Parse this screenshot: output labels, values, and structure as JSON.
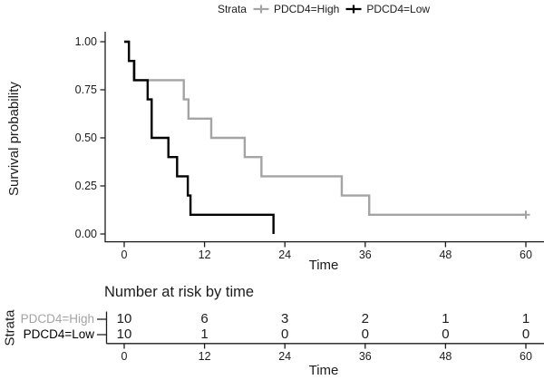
{
  "legend": {
    "title": "Strata",
    "items": [
      {
        "label": "PDCD4=High",
        "color": "#a4a4a4"
      },
      {
        "label": "PDCD4=Low",
        "color": "#000000"
      }
    ]
  },
  "axes": {
    "x_label": "Time",
    "y_label": "Survival probability",
    "x_ticks": [
      0,
      12,
      24,
      36,
      48,
      60
    ],
    "y_ticks": [
      "1.00",
      "0.75",
      "0.50",
      "0.25",
      "0.00"
    ],
    "y_tick_values": [
      1.0,
      0.75,
      0.5,
      0.25,
      0.0
    ]
  },
  "chart_data": {
    "type": "line",
    "subtype": "kaplan-meier-step",
    "title": "",
    "xlabel": "Time",
    "ylabel": "Survival probability",
    "xlim": [
      0,
      60
    ],
    "ylim": [
      0.0,
      1.0
    ],
    "grid": false,
    "legend_position": "top",
    "series": [
      {
        "name": "PDCD4=High",
        "color": "#a4a4a4",
        "steps": [
          [
            0,
            1.0
          ],
          [
            0.7,
            0.9
          ],
          [
            1.4,
            0.8
          ],
          [
            8.9,
            0.7
          ],
          [
            9.6,
            0.6
          ],
          [
            13,
            0.5
          ],
          [
            18,
            0.4
          ],
          [
            20.5,
            0.3
          ],
          [
            32.5,
            0.2
          ],
          [
            36.6,
            0.1
          ],
          [
            60,
            0.1
          ]
        ],
        "censored": [
          [
            60,
            0.1
          ]
        ]
      },
      {
        "name": "PDCD4=Low",
        "color": "#000000",
        "steps": [
          [
            0,
            1.0
          ],
          [
            0.7,
            0.9
          ],
          [
            1.5,
            0.8
          ],
          [
            3.5,
            0.7
          ],
          [
            4.1,
            0.5
          ],
          [
            6.6,
            0.4
          ],
          [
            7.9,
            0.3
          ],
          [
            9.5,
            0.2
          ],
          [
            9.9,
            0.1
          ],
          [
            22.3,
            0.0
          ]
        ],
        "censored": []
      }
    ]
  },
  "risk_table": {
    "title": "Number at risk by time",
    "axis_label": "Strata",
    "x_label": "Time",
    "x_ticks": [
      0,
      12,
      24,
      36,
      48,
      60
    ],
    "rows": [
      {
        "label": "PDCD4=High",
        "color": "#a4a4a4",
        "counts": [
          10,
          6,
          3,
          2,
          1,
          1
        ]
      },
      {
        "label": "PDCD4=Low",
        "color": "#000000",
        "counts": [
          10,
          1,
          0,
          0,
          0,
          0
        ]
      }
    ]
  }
}
